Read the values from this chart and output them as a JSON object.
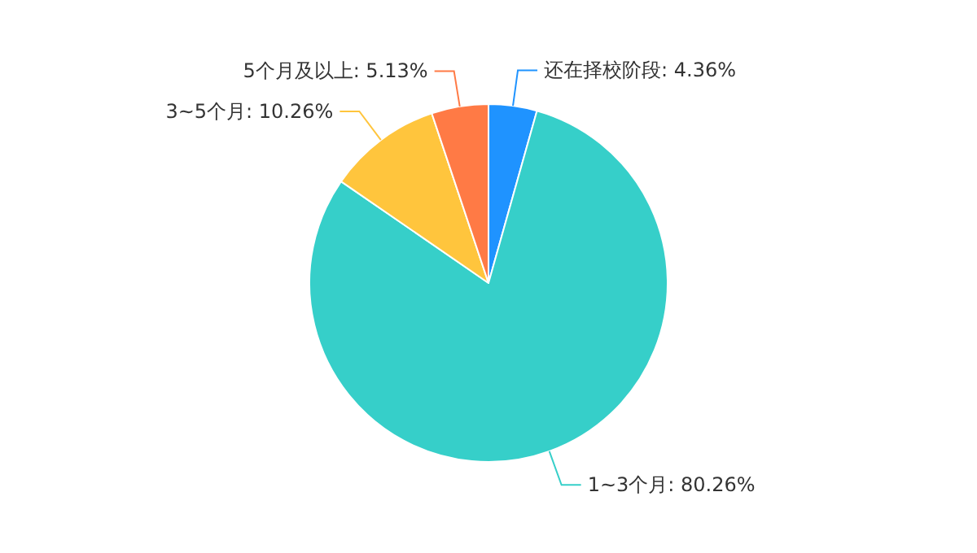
{
  "chart_data": {
    "type": "pie",
    "categories": [
      "还在择校阶段",
      "1~3个月",
      "3~5个月",
      "5个月及以上"
    ],
    "values": [
      4.36,
      80.26,
      10.26,
      5.13
    ],
    "colors": [
      "#1f93ff",
      "#36cfc9",
      "#ffc53d",
      "#ff7a45"
    ],
    "value_labels": [
      "4.36%",
      "80.26%",
      "10.26%",
      "5.13%"
    ]
  }
}
